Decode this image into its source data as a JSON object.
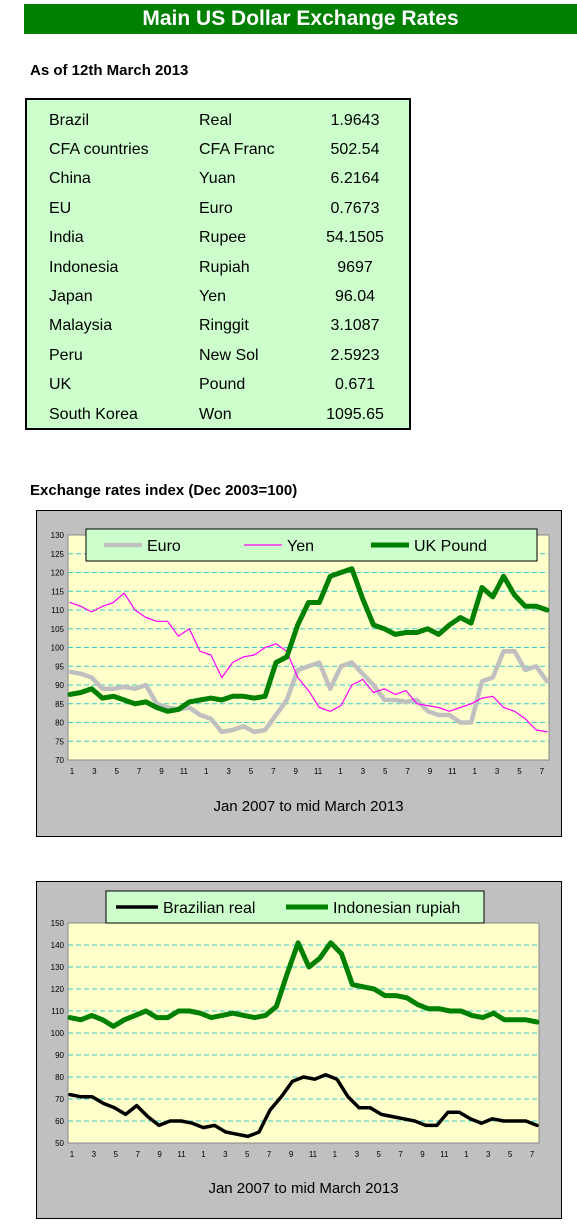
{
  "header": {
    "title": "Main US Dollar Exchange Rates"
  },
  "as_of": "As of 12th March 2013",
  "rates_table": [
    {
      "country": "Brazil",
      "currency": "Real",
      "rate": "1.9643"
    },
    {
      "country": "CFA countries",
      "currency": "CFA Franc",
      "rate": "502.54"
    },
    {
      "country": "China",
      "currency": "Yuan",
      "rate": "6.2164"
    },
    {
      "country": "EU",
      "currency": "Euro",
      "rate": "0.7673"
    },
    {
      "country": "India",
      "currency": "Rupee",
      "rate": "54.1505"
    },
    {
      "country": "Indonesia",
      "currency": "Rupiah",
      "rate": "9697"
    },
    {
      "country": "Japan",
      "currency": "Yen",
      "rate": "96.04"
    },
    {
      "country": "Malaysia",
      "currency": "Ringgit",
      "rate": "3.1087"
    },
    {
      "country": "Peru",
      "currency": "New Sol",
      "rate": "2.5923"
    },
    {
      "country": "UK",
      "currency": "Pound",
      "rate": "0.671"
    },
    {
      "country": "South Korea",
      "currency": "Won",
      "rate": "1095.65"
    }
  ],
  "section_title": "Exchange rates index (Dec 2003=100)",
  "chart_data": [
    {
      "type": "line",
      "xlabel": "Jan 2007 to mid March 2013",
      "x_tick_labels": [
        "1",
        "3",
        "5",
        "7",
        "9",
        "11",
        "1",
        "3",
        "5",
        "7",
        "9",
        "11",
        "1",
        "3",
        "5",
        "7",
        "9",
        "11",
        "1",
        "3",
        "5",
        "7"
      ],
      "ylim": [
        70,
        130
      ],
      "y_ticks": [
        70,
        75,
        80,
        85,
        90,
        95,
        100,
        105,
        110,
        115,
        120,
        125,
        130
      ],
      "grid": true,
      "legend": "top",
      "series": [
        {
          "name": "Euro",
          "color": "#c0c0c0",
          "values": [
            93.5,
            93,
            92,
            89,
            89,
            89.5,
            89,
            90,
            85,
            84,
            83.5,
            84,
            82,
            81,
            77.5,
            78,
            79,
            77.5,
            78,
            82,
            86,
            94,
            95,
            96,
            89,
            95,
            96,
            93,
            90,
            86,
            86,
            85.5,
            86,
            83,
            82,
            82,
            80,
            80,
            91,
            92,
            99,
            99,
            94,
            95,
            91
          ]
        },
        {
          "name": "Yen",
          "color": "#ff00ff",
          "values": [
            112,
            111,
            109.5,
            111,
            112,
            114.5,
            110,
            108,
            107,
            107,
            103,
            105,
            99,
            98,
            92,
            96,
            97.5,
            98,
            100,
            101,
            99,
            92,
            88.5,
            84,
            83,
            84.5,
            90,
            91.5,
            88,
            89,
            87.5,
            88.5,
            85,
            84.5,
            84,
            83,
            84,
            85,
            86.5,
            87,
            84,
            83,
            81,
            78,
            77.5
          ]
        },
        {
          "name": "UK Pound",
          "color": "#008000",
          "values": [
            87.5,
            88,
            89,
            86.5,
            87,
            86,
            85,
            85.5,
            84,
            83,
            83.5,
            85.5,
            86,
            86.5,
            86,
            87,
            87,
            86.5,
            87,
            96,
            97.5,
            106,
            112,
            112,
            119,
            120,
            121,
            113,
            106,
            105,
            103.5,
            104,
            104,
            105,
            103.5,
            106,
            108,
            106.5,
            116,
            113.5,
            119,
            114,
            111,
            111,
            110
          ]
        }
      ]
    },
    {
      "type": "line",
      "xlabel": "Jan 2007 to mid March 2013",
      "x_tick_labels": [
        "1",
        "3",
        "5",
        "7",
        "9",
        "11",
        "1",
        "3",
        "5",
        "7",
        "9",
        "11",
        "1",
        "3",
        "5",
        "7",
        "9",
        "11",
        "1",
        "3",
        "5",
        "7"
      ],
      "ylim": [
        50,
        150
      ],
      "y_ticks": [
        50,
        60,
        70,
        80,
        90,
        100,
        110,
        120,
        130,
        140,
        150
      ],
      "grid": true,
      "legend": "top",
      "series": [
        {
          "name": "Brazilian real",
          "color": "#000000",
          "values": [
            72,
            71,
            71,
            68,
            66,
            63,
            67,
            62,
            58,
            60,
            60,
            59,
            57,
            58,
            55,
            54,
            53,
            55,
            65,
            71,
            78,
            80,
            79,
            81,
            79,
            71,
            66,
            66,
            63,
            62,
            61,
            60,
            58,
            58,
            64,
            64,
            61,
            59,
            61,
            60,
            60,
            60,
            58
          ]
        },
        {
          "name": "Indonesian rupiah",
          "color": "#008000",
          "values": [
            107,
            106,
            108,
            106,
            103,
            106,
            108,
            110,
            107,
            107,
            110,
            110,
            109,
            107,
            108,
            109,
            108,
            107,
            108,
            112,
            127,
            141,
            130,
            134,
            141,
            136,
            122,
            121,
            120,
            117,
            117,
            116,
            113,
            111,
            111,
            110,
            110,
            108,
            107,
            109,
            106,
            106,
            106,
            105
          ]
        }
      ]
    }
  ]
}
